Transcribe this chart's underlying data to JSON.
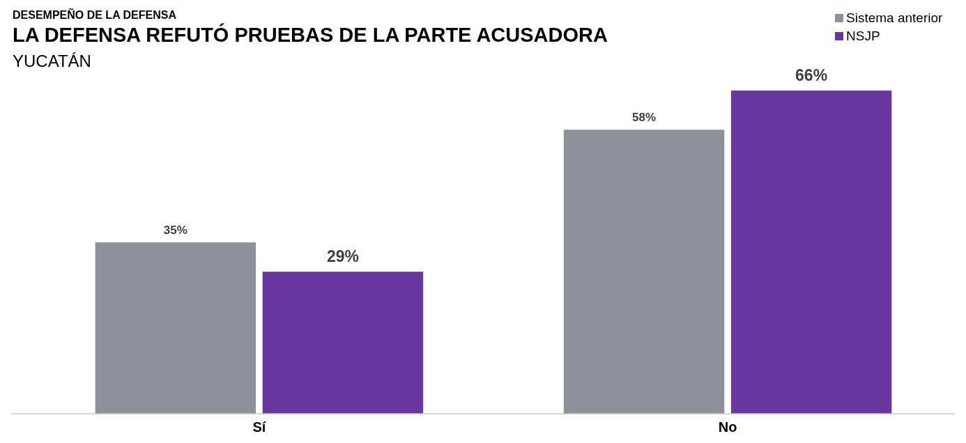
{
  "chart_data": {
    "type": "bar",
    "title": "LA DEFENSA REFUTÓ PRUEBAS DE LA PARTE ACUSADORA",
    "subtitle": "YUCATÁN",
    "annotations": [
      "DESEMPEÑO DE LA DEFENSA"
    ],
    "categories": [
      "Sí",
      "No"
    ],
    "series": [
      {
        "name": "Sistema anterior",
        "color": "#8e919c",
        "values": [
          35,
          58
        ],
        "value_labels": [
          "35%",
          "58%"
        ]
      },
      {
        "name": "NSJP",
        "color": "#68389e",
        "values": [
          29,
          66
        ],
        "value_labels": [
          "29%",
          "66%"
        ]
      }
    ],
    "legend": "top right"
  }
}
